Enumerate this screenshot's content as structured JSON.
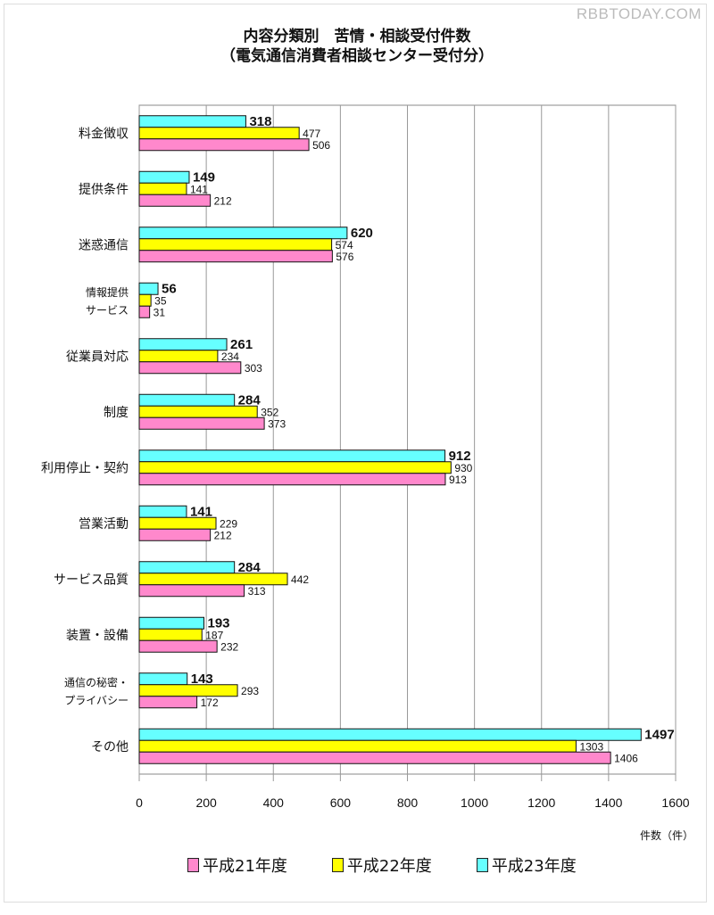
{
  "watermark": "RBBTODAY.COM",
  "chart_data": {
    "type": "bar",
    "orientation": "horizontal",
    "title": "内容分類別　苦情・相談受付件数",
    "subtitle": "（電気通信消費者相談センター受付分）",
    "categories": [
      [
        "料金徴収"
      ],
      [
        "提供条件"
      ],
      [
        "迷惑通信"
      ],
      [
        "情報提供",
        "サービス"
      ],
      [
        "従業員対応"
      ],
      [
        "制度"
      ],
      [
        "利用停止・契約"
      ],
      [
        "営業活動"
      ],
      [
        "サービス品質"
      ],
      [
        "装置・設備"
      ],
      [
        "通信の秘密・",
        "プライバシー"
      ],
      [
        "その他"
      ]
    ],
    "series": [
      {
        "name": "平成23年度",
        "color": "#66ffff",
        "values": [
          318,
          149,
          620,
          56,
          261,
          284,
          912,
          141,
          284,
          193,
          143,
          1497
        ]
      },
      {
        "name": "平成22年度",
        "color": "#ffff00",
        "values": [
          477,
          141,
          574,
          35,
          234,
          352,
          930,
          229,
          442,
          187,
          293,
          1303
        ]
      },
      {
        "name": "平成21年度",
        "color": "#ff88cc",
        "values": [
          506,
          212,
          576,
          31,
          303,
          373,
          913,
          212,
          313,
          232,
          172,
          1406
        ]
      }
    ],
    "legend_order": [
      "平成21年度",
      "平成22年度",
      "平成23年度"
    ],
    "xlabel": "件数（件）",
    "xlim": [
      0,
      1600
    ],
    "xticks": [
      0,
      200,
      400,
      600,
      800,
      1000,
      1200,
      1400,
      1600
    ],
    "grid": true,
    "legend_position": "bottom"
  }
}
